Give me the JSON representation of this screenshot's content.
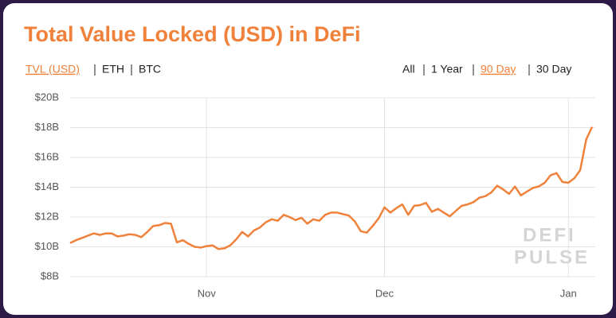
{
  "chart_data": {
    "type": "line",
    "title": "Total Value Locked (USD) in DeFi",
    "unit_tabs": [
      "TVL (USD)",
      "ETH",
      "BTC"
    ],
    "range_tabs": [
      "All",
      "1 Year",
      "90 Day",
      "30 Day"
    ],
    "watermark": [
      "DEFI",
      "PULSE"
    ],
    "categories": [
      null,
      null,
      null,
      null,
      null,
      null,
      null,
      null,
      null,
      null,
      null,
      null,
      null,
      null,
      null,
      null,
      null,
      null,
      null,
      null,
      null,
      null,
      null,
      "Nov",
      null,
      null,
      null,
      null,
      null,
      null,
      null,
      null,
      null,
      null,
      null,
      null,
      null,
      null,
      null,
      null,
      null,
      null,
      null,
      null,
      null,
      null,
      null,
      null,
      null,
      null,
      null,
      null,
      null,
      "Dec",
      null,
      null,
      null,
      null,
      null,
      null,
      null,
      null,
      null,
      null,
      null,
      null,
      null,
      null,
      null,
      null,
      null,
      null,
      null,
      null,
      null,
      null,
      null,
      null,
      null,
      null,
      null,
      null,
      null,
      null,
      "Jan",
      null,
      null,
      null,
      null
    ],
    "values": [
      10.25,
      10.45,
      10.6,
      10.75,
      10.9,
      10.8,
      10.9,
      10.9,
      10.7,
      10.75,
      10.85,
      10.8,
      10.65,
      11.0,
      11.4,
      11.45,
      11.6,
      11.55,
      10.3,
      10.45,
      10.2,
      10.0,
      9.95,
      10.05,
      10.1,
      9.85,
      9.9,
      10.1,
      10.5,
      11.0,
      10.7,
      11.1,
      11.3,
      11.65,
      11.85,
      11.75,
      12.15,
      12.0,
      11.8,
      11.95,
      11.55,
      11.85,
      11.75,
      12.15,
      12.3,
      12.3,
      12.2,
      12.1,
      11.7,
      11.05,
      10.95,
      11.4,
      11.9,
      12.65,
      12.3,
      12.6,
      12.85,
      12.15,
      12.75,
      12.8,
      12.95,
      12.35,
      12.55,
      12.3,
      12.05,
      12.4,
      12.75,
      12.85,
      13.0,
      13.3,
      13.4,
      13.65,
      14.1,
      13.85,
      13.55,
      14.05,
      13.45,
      13.7,
      13.95,
      14.05,
      14.3,
      14.8,
      14.95,
      14.35,
      14.3,
      14.6,
      15.15,
      17.2,
      18.05
    ],
    "color": "#f0813a",
    "ylim": [
      8,
      20
    ],
    "yticks": [
      {
        "value": 8,
        "label": "$8B"
      },
      {
        "value": 10,
        "label": "$10B"
      },
      {
        "value": 12,
        "label": "$12B"
      },
      {
        "value": 14,
        "label": "$14B"
      },
      {
        "value": 16,
        "label": "$16B"
      },
      {
        "value": 18,
        "label": "$18B"
      },
      {
        "value": 20,
        "label": "$20B"
      }
    ],
    "grid": true
  }
}
